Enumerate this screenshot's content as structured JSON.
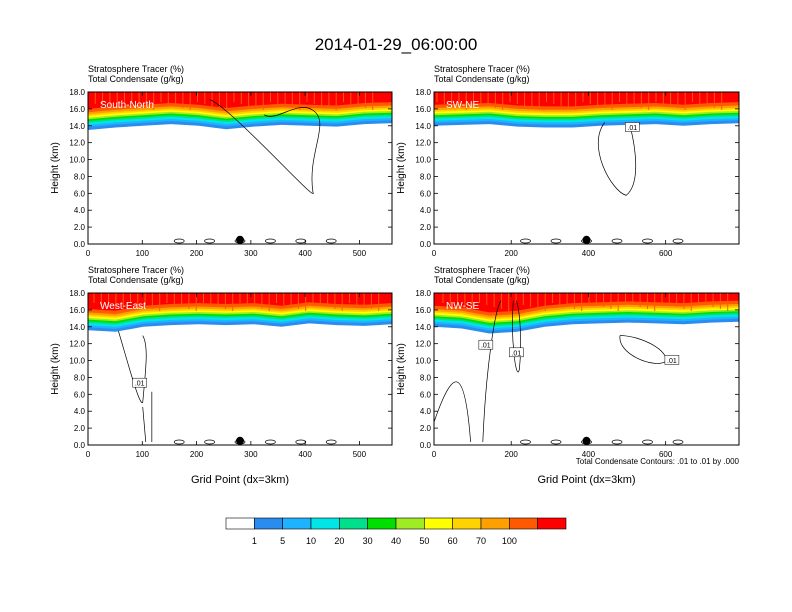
{
  "figure_title": "2014-01-29_06:00:00",
  "colors": {
    "tracer_levels": [
      "#ffffff",
      "#2b8cf0",
      "#1fb2ff",
      "#00e6e6",
      "#00e08c",
      "#00e000",
      "#a0ec24",
      "#ffff00",
      "#ffd200",
      "#ffa000",
      "#ff5a00",
      "#ff0000"
    ]
  },
  "colorbar": {
    "labels": [
      "1",
      "5",
      "10",
      "20",
      "30",
      "40",
      "50",
      "60",
      "70",
      "100"
    ]
  },
  "contour_note": "Total Condensate Contours: .01 to .01 by .000",
  "chart_data": [
    {
      "type": "heatmap",
      "panel_label": "South-North",
      "title_line1": "Stratosphere Tracer   (%)",
      "title_line2": "Total Condensate   (g/kg)",
      "ylabel": "Height (km)",
      "xlabel": "",
      "xlim": [
        0,
        560
      ],
      "ylim": [
        0,
        18
      ],
      "xticks": [
        0,
        100,
        200,
        300,
        400,
        500
      ],
      "yticks": [
        "0.0",
        "2.0",
        "4.0",
        "6.0",
        "8.0",
        "10.0",
        "12.0",
        "14.0",
        "16.0",
        "18.0"
      ],
      "tracer_top_km": [
        13.5,
        13.8,
        14.0,
        14.2,
        14.0,
        13.6,
        13.9,
        14.1,
        14.0,
        13.9,
        14.2,
        14.3
      ],
      "contour_labels": [],
      "marker_x": 280
    },
    {
      "type": "heatmap",
      "panel_label": "SW-NE",
      "title_line1": "Stratosphere Tracer   (%)",
      "title_line2": "Total Condensate   (g/kg)",
      "ylabel": "Height (km)",
      "xlabel": "",
      "xlim": [
        0,
        790
      ],
      "ylim": [
        0,
        18
      ],
      "xticks": [
        0,
        200,
        400,
        600
      ],
      "yticks": [
        "0.0",
        "2.0",
        "4.0",
        "6.0",
        "8.0",
        "10.0",
        "12.0",
        "14.0",
        "16.0",
        "18.0"
      ],
      "tracer_top_km": [
        14.0,
        14.1,
        14.2,
        13.9,
        13.8,
        13.8,
        14.0,
        14.1,
        14.2,
        14.0,
        14.2,
        14.3
      ],
      "contour_labels": [
        ".01"
      ],
      "marker_x": 395
    },
    {
      "type": "heatmap",
      "panel_label": "West-East",
      "title_line1": "Stratosphere Tracer   (%)",
      "title_line2": "Total Condensate   (g/kg)",
      "ylabel": "Height (km)",
      "xlabel": "Grid Point (dx=3km)",
      "xlim": [
        0,
        560
      ],
      "ylim": [
        0,
        18
      ],
      "xticks": [
        0,
        100,
        200,
        300,
        400,
        500
      ],
      "yticks": [
        "0.0",
        "2.0",
        "4.0",
        "6.0",
        "8.0",
        "10.0",
        "12.0",
        "14.0",
        "16.0",
        "18.0"
      ],
      "tracer_top_km": [
        13.6,
        13.4,
        14.0,
        14.2,
        14.3,
        14.2,
        14.3,
        14.0,
        14.4,
        14.2,
        14.1,
        14.3
      ],
      "contour_labels": [
        ".01"
      ],
      "marker_x": 280
    },
    {
      "type": "heatmap",
      "panel_label": "NW-SE",
      "title_line1": "Stratosphere Tracer   (%)",
      "title_line2": "Total Condensate   (g/kg)",
      "ylabel": "Height (km)",
      "xlabel": "Grid Point (dx=3km)",
      "xlim": [
        0,
        790
      ],
      "ylim": [
        0,
        18
      ],
      "xticks": [
        0,
        200,
        400,
        600
      ],
      "yticks": [
        "0.0",
        "2.0",
        "4.0",
        "6.0",
        "8.0",
        "10.0",
        "12.0",
        "14.0",
        "16.0",
        "18.0"
      ],
      "tracer_top_km": [
        14.0,
        13.8,
        13.2,
        13.4,
        14.0,
        14.3,
        14.4,
        14.5,
        14.4,
        14.3,
        14.5,
        14.6
      ],
      "contour_labels": [
        ".01",
        ".01",
        ".01"
      ],
      "marker_x": 395
    }
  ]
}
